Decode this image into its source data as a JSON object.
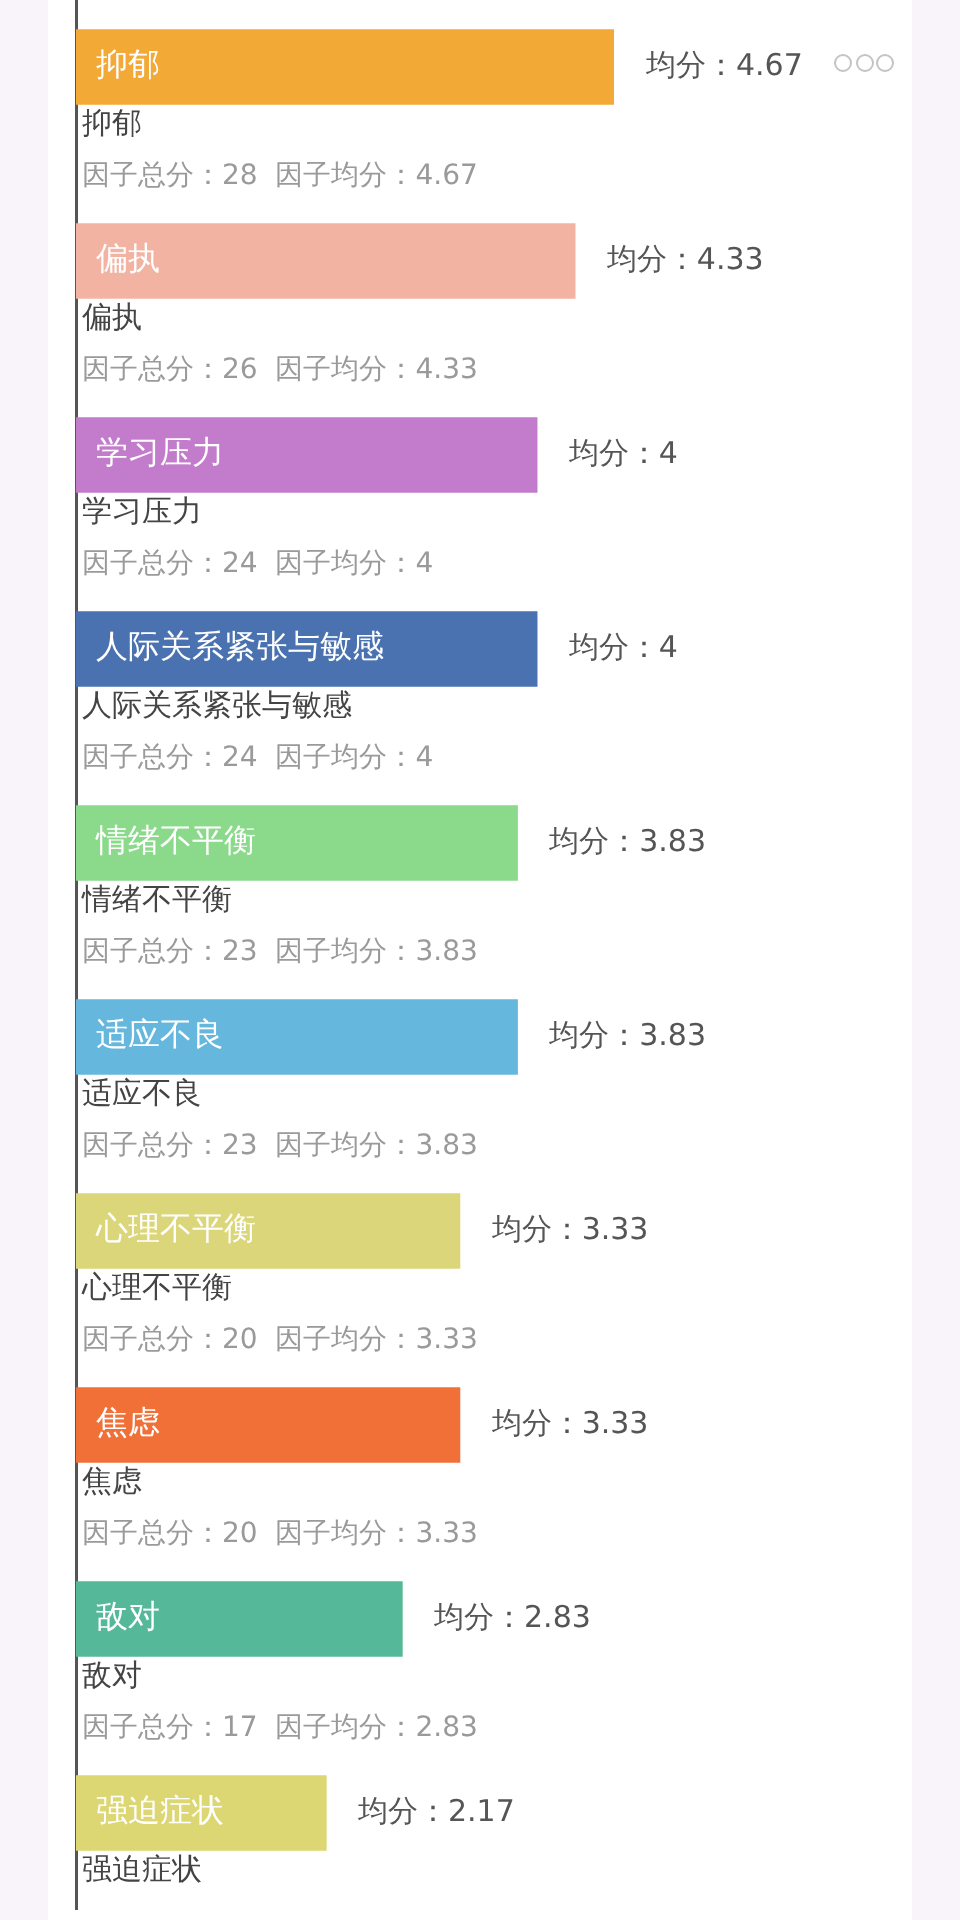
{
  "chart_data": {
    "type": "bar",
    "orientation": "horizontal",
    "categories": [
      "抑郁",
      "偏执",
      "学习压力",
      "人际关系紧张与敏感",
      "情绪不平衡",
      "适应不良",
      "心理不平衡",
      "焦虑",
      "敌对",
      "强迫症状"
    ],
    "values": [
      4.67,
      4.33,
      4,
      4,
      3.83,
      3.83,
      3.33,
      3.33,
      2.83,
      2.17
    ],
    "colors": [
      "#f2a935",
      "#f3b3a2",
      "#c27ccb",
      "#4a72b0",
      "#8bd98b",
      "#66b7dd",
      "#dbd679",
      "#f07038",
      "#55b999",
      "#dcd673"
    ],
    "value_labels": [
      "均分：4.67",
      "均分：4.33",
      "均分：4",
      "均分：4",
      "均分：3.83",
      "均分：3.83",
      "均分：3.33",
      "均分：3.33",
      "均分：2.83",
      "均分：2.17"
    ],
    "annotations": [
      "因子总分：28  因子均分：4.67",
      "因子总分：26  因子均分：4.33",
      "因子总分：24  因子均分：4",
      "因子总分：24  因子均分：4",
      "因子总分：23  因子均分：3.83",
      "因子总分：23  因子均分：3.83",
      "因子总分：20  因子均分：3.33",
      "因子总分：20  因子均分：3.33",
      "因子总分：17  因子均分：2.83"
    ],
    "tick_labels": false,
    "legend": false,
    "grid": false
  }
}
